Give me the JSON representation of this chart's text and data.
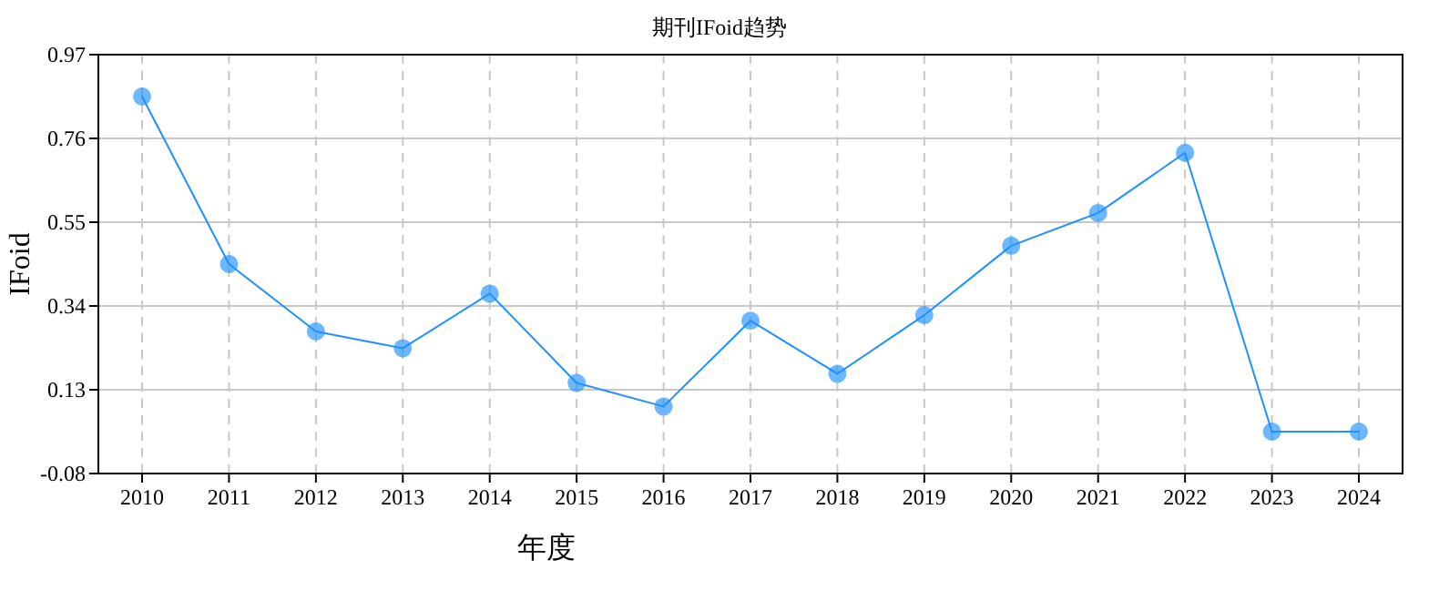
{
  "chart_data": {
    "type": "line",
    "title": "期刊IFoid趋势",
    "xlabel": "年度",
    "ylabel": "IFoid",
    "categories": [
      "2010",
      "2011",
      "2012",
      "2013",
      "2014",
      "2015",
      "2016",
      "2017",
      "2018",
      "2019",
      "2020",
      "2021",
      "2022",
      "2023",
      "2024"
    ],
    "series": [
      {
        "color": "#1e90ff",
        "values": [
          0.865,
          0.445,
          0.276,
          0.234,
          0.371,
          0.147,
          0.088,
          0.303,
          0.17,
          0.317,
          0.491,
          0.573,
          0.724,
          0.025,
          0.025
        ]
      }
    ],
    "ylim": [
      -0.08,
      0.97
    ],
    "yticks": [
      -0.08,
      0.13,
      0.34,
      0.55,
      0.76,
      0.97
    ],
    "grid": true,
    "marker": "circle",
    "line_style": "solid"
  }
}
